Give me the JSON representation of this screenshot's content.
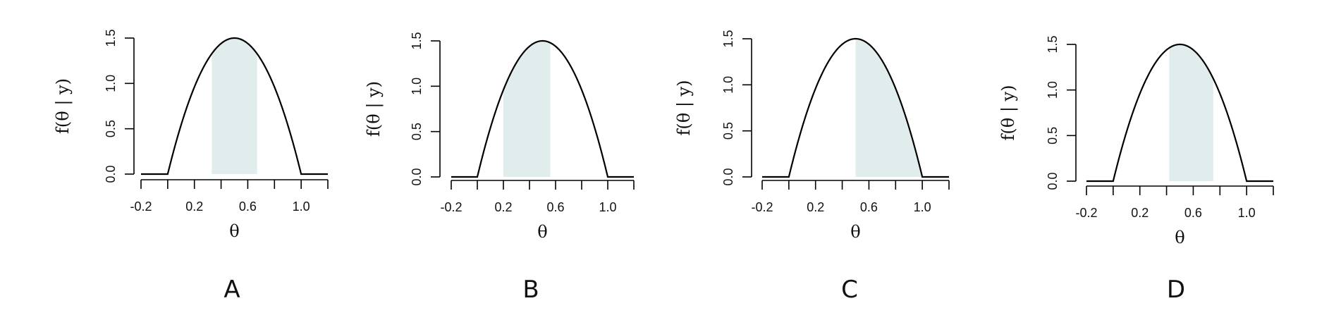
{
  "figure": {
    "panel_labels": [
      "A",
      "B",
      "C",
      "D"
    ]
  },
  "chart_data": [
    {
      "type": "area",
      "panel": "A",
      "xlabel": "θ",
      "ylabel": "f(θ | y)",
      "xlim": [
        -0.2,
        1.2
      ],
      "ylim": [
        0,
        1.5
      ],
      "x_ticks": [
        -0.2,
        0.0,
        0.2,
        0.4,
        0.6,
        0.8,
        1.0,
        1.2
      ],
      "x_tick_labels": [
        "-0.2",
        "",
        "0.2",
        "",
        "0.6",
        "",
        "1.0",
        ""
      ],
      "y_ticks": [
        0.0,
        0.5,
        1.0,
        1.5
      ],
      "y_tick_labels": [
        "0.0",
        "0.5",
        "1.0",
        "1.5"
      ],
      "curve": "6*θ*(1-θ) on [0,1], 0 elsewhere",
      "shaded_interval": [
        0.33,
        0.67
      ],
      "colors": {
        "curve": "#000000",
        "shade": "#e1ecec"
      }
    },
    {
      "type": "area",
      "panel": "B",
      "xlabel": "θ",
      "ylabel": "f(θ | y)",
      "xlim": [
        -0.2,
        1.2
      ],
      "ylim": [
        0,
        1.5
      ],
      "x_ticks": [
        -0.2,
        0.0,
        0.2,
        0.4,
        0.6,
        0.8,
        1.0,
        1.2
      ],
      "x_tick_labels": [
        "-0.2",
        "",
        "0.2",
        "",
        "0.6",
        "",
        "1.0",
        ""
      ],
      "y_ticks": [
        0.0,
        0.5,
        1.0,
        1.5
      ],
      "y_tick_labels": [
        "0.0",
        "0.5",
        "1.0",
        "1.5"
      ],
      "curve": "6*θ*(1-θ) on [0,1], 0 elsewhere",
      "shaded_interval": [
        0.2,
        0.56
      ],
      "colors": {
        "curve": "#000000",
        "shade": "#e1ecec"
      }
    },
    {
      "type": "area",
      "panel": "C",
      "xlabel": "θ",
      "ylabel": "f(θ | y)",
      "xlim": [
        -0.2,
        1.2
      ],
      "ylim": [
        0,
        1.5
      ],
      "x_ticks": [
        -0.2,
        0.0,
        0.2,
        0.4,
        0.6,
        0.8,
        1.0,
        1.2
      ],
      "x_tick_labels": [
        "-0.2",
        "",
        "0.2",
        "",
        "0.6",
        "",
        "1.0",
        ""
      ],
      "y_ticks": [
        0.0,
        0.5,
        1.0,
        1.5
      ],
      "y_tick_labels": [
        "0.0",
        "0.5",
        "1.0",
        "1.5"
      ],
      "curve": "6*θ*(1-θ) on [0,1], 0 elsewhere",
      "shaded_interval": [
        0.5,
        1.0
      ],
      "colors": {
        "curve": "#000000",
        "shade": "#e1ecec"
      }
    },
    {
      "type": "area",
      "panel": "D",
      "xlabel": "θ",
      "ylabel": "f(θ | y)",
      "xlim": [
        -0.2,
        1.2
      ],
      "ylim": [
        0,
        1.5
      ],
      "x_ticks": [
        -0.2,
        0.0,
        0.2,
        0.4,
        0.6,
        0.8,
        1.0,
        1.2
      ],
      "x_tick_labels": [
        "-0.2",
        "",
        "0.2",
        "",
        "0.6",
        "",
        "1.0",
        ""
      ],
      "y_ticks": [
        0.0,
        0.5,
        1.0,
        1.5
      ],
      "y_tick_labels": [
        "0.0",
        "0.5",
        "1.0",
        "1.5"
      ],
      "curve": "6*θ*(1-θ) on [0,1], 0 elsewhere",
      "shaded_interval": [
        0.42,
        0.75
      ],
      "colors": {
        "curve": "#000000",
        "shade": "#e1ecec"
      }
    }
  ]
}
